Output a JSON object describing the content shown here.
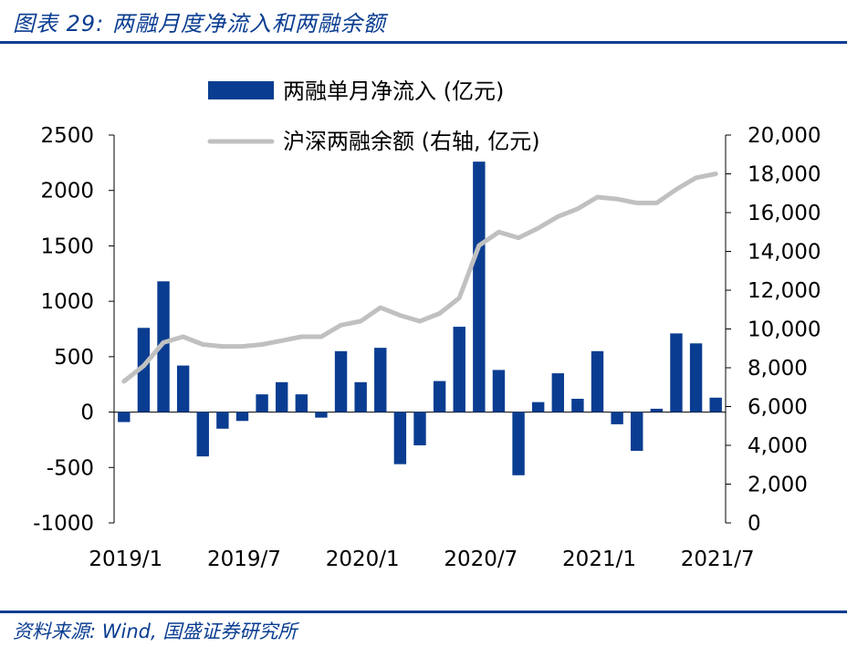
{
  "header": {
    "title": "图表 29:  两融月度净流入和两融余额"
  },
  "footer": {
    "source": "资料来源: Wind, 国盛证券研究所"
  },
  "colors": {
    "bar": "#0a3d91",
    "line": "#c0c0c0",
    "rule": "#0a3d91"
  },
  "chart_data": {
    "type": "bar",
    "legend_position": "top-center",
    "grid": false,
    "x": [
      "2019/1",
      "2019/2",
      "2019/3",
      "2019/4",
      "2019/5",
      "2019/6",
      "2019/7",
      "2019/8",
      "2019/9",
      "2019/10",
      "2019/11",
      "2019/12",
      "2020/1",
      "2020/2",
      "2020/3",
      "2020/4",
      "2020/5",
      "2020/6",
      "2020/7",
      "2020/8",
      "2020/9",
      "2020/10",
      "2020/11",
      "2020/12",
      "2021/1",
      "2021/2",
      "2021/3",
      "2021/4",
      "2021/5",
      "2021/6",
      "2021/7"
    ],
    "x_tick_labels": [
      "2019/1",
      "2019/7",
      "2020/1",
      "2020/7",
      "2021/1",
      "2021/7"
    ],
    "y_left": {
      "ylim": [
        -1000,
        2500
      ],
      "ticks": [
        2500,
        2000,
        1500,
        1000,
        500,
        0,
        -500,
        -1000
      ],
      "tick_labels": [
        "2500",
        "2000",
        "1500",
        "1000",
        "500",
        "0",
        "-500",
        "-1000"
      ]
    },
    "y_right": {
      "ylim": [
        0,
        20000
      ],
      "ticks": [
        20000,
        18000,
        16000,
        14000,
        12000,
        10000,
        8000,
        6000,
        4000,
        2000,
        0
      ],
      "tick_labels": [
        "20,000",
        "18,000",
        "16,000",
        "14,000",
        "12,000",
        "10,000",
        "8,000",
        "6,000",
        "4,000",
        "2,000",
        "0"
      ]
    },
    "series": [
      {
        "name": "两融单月净流入 (亿元)",
        "type": "bar",
        "axis": "left",
        "values": [
          -90,
          760,
          1180,
          420,
          -400,
          -150,
          -80,
          160,
          270,
          160,
          -50,
          550,
          270,
          580,
          -470,
          -300,
          280,
          770,
          2260,
          380,
          -570,
          90,
          350,
          120,
          550,
          -110,
          -350,
          30,
          710,
          620,
          130
        ]
      },
      {
        "name": "沪深两融余额 (右轴, 亿元)",
        "type": "line",
        "axis": "right",
        "values": [
          7300,
          8100,
          9300,
          9600,
          9200,
          9100,
          9100,
          9200,
          9400,
          9600,
          9600,
          10200,
          10400,
          11100,
          10700,
          10400,
          10800,
          11600,
          14300,
          15000,
          14700,
          15200,
          15800,
          16200,
          16800,
          16700,
          16500,
          16500,
          17200,
          17800,
          18000
        ]
      }
    ]
  }
}
